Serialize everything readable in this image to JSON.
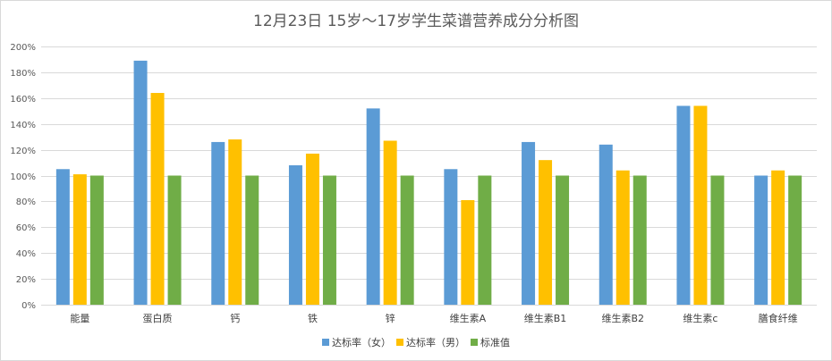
{
  "chart_data": {
    "type": "bar",
    "title": "12月23日 15岁～17岁学生菜谱营养成分分析图",
    "xlabel": "",
    "ylabel": "",
    "categories": [
      "能量",
      "蛋白质",
      "钙",
      "铁",
      "锌",
      "维生素A",
      "维生素B1",
      "维生素B2",
      "维生素c",
      "膳食纤维"
    ],
    "series": [
      {
        "name": "达标率（女）",
        "color": "#5b9bd5",
        "values": [
          105,
          189,
          126,
          108,
          152,
          105,
          126,
          124,
          154,
          100
        ]
      },
      {
        "name": "达标率（男）",
        "color": "#ffc000",
        "values": [
          101,
          164,
          128,
          117,
          127,
          81,
          112,
          104,
          154,
          104
        ]
      },
      {
        "name": "标准值",
        "color": "#70ad47",
        "values": [
          100,
          100,
          100,
          100,
          100,
          100,
          100,
          100,
          100,
          100
        ]
      }
    ],
    "ylim": [
      0,
      200
    ],
    "yticks": [
      0,
      20,
      40,
      60,
      80,
      100,
      120,
      140,
      160,
      180,
      200
    ],
    "ytick_suffix": "%",
    "grid": true,
    "legend_position": "bottom"
  }
}
